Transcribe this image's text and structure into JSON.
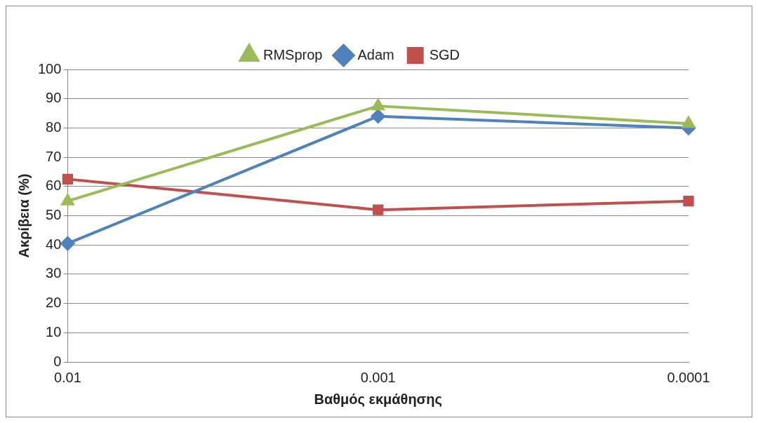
{
  "chart_data": {
    "type": "line",
    "xlabel": "Βαθμός εκμάθησης",
    "ylabel": "Ακρίβεια (%)",
    "categories": [
      "0.01",
      "0.001",
      "0.0001"
    ],
    "series": [
      {
        "name": "RMSprop",
        "color": "#9bbb59",
        "marker": "triangle",
        "values": [
          55,
          87.5,
          81.5
        ]
      },
      {
        "name": "Adam",
        "color": "#4f81bd",
        "marker": "diamond",
        "values": [
          40.5,
          84,
          80
        ]
      },
      {
        "name": "SGD",
        "color": "#c0504d",
        "marker": "square",
        "values": [
          62.5,
          52,
          55
        ]
      }
    ],
    "ylim": [
      0,
      100
    ],
    "yticks": [
      0,
      10,
      20,
      30,
      40,
      50,
      60,
      70,
      80,
      90,
      100
    ],
    "grid": "y",
    "legend": "top"
  }
}
